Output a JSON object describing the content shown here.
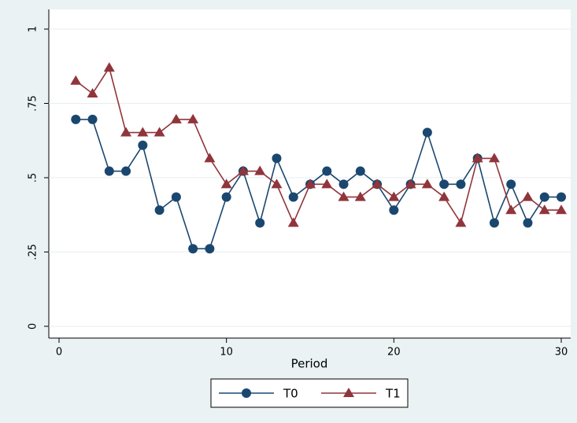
{
  "chart_data": {
    "type": "line",
    "x_label": "Period",
    "x": [
      1,
      2,
      3,
      4,
      5,
      6,
      7,
      8,
      9,
      10,
      11,
      12,
      13,
      14,
      15,
      16,
      17,
      18,
      19,
      20,
      21,
      22,
      23,
      24,
      25,
      26,
      27,
      28,
      29,
      30
    ],
    "series": [
      {
        "name": "T0",
        "color": "#1a476f",
        "marker": "circle",
        "values": [
          0.696,
          0.696,
          0.522,
          0.522,
          0.609,
          0.391,
          0.435,
          0.261,
          0.261,
          0.435,
          0.522,
          0.348,
          0.565,
          0.435,
          0.478,
          0.522,
          0.478,
          0.522,
          0.478,
          0.391,
          0.478,
          0.652,
          0.478,
          0.478,
          0.565,
          0.348,
          0.478,
          0.348,
          0.435,
          0.435
        ]
      },
      {
        "name": "T1",
        "color": "#90353b",
        "marker": "triangle",
        "values": [
          0.826,
          0.783,
          0.87,
          0.652,
          0.652,
          0.652,
          0.696,
          0.696,
          0.565,
          0.478,
          0.522,
          0.522,
          0.478,
          0.348,
          0.478,
          0.478,
          0.435,
          0.435,
          0.478,
          0.435,
          0.478,
          0.478,
          0.435,
          0.348,
          0.565,
          0.565,
          0.391,
          0.435,
          0.391,
          0.391
        ]
      }
    ],
    "xlim": [
      0,
      30
    ],
    "xticks": [
      0,
      10,
      20,
      30
    ],
    "ylim": [
      0,
      1
    ],
    "yticks": [
      0,
      {
        "value": 0.25,
        "label": ".25"
      },
      {
        "value": 0.5,
        "label": ".5"
      },
      {
        "value": 0.75,
        "label": ".75"
      },
      1
    ],
    "grid": true,
    "legend_position": "bottom"
  }
}
